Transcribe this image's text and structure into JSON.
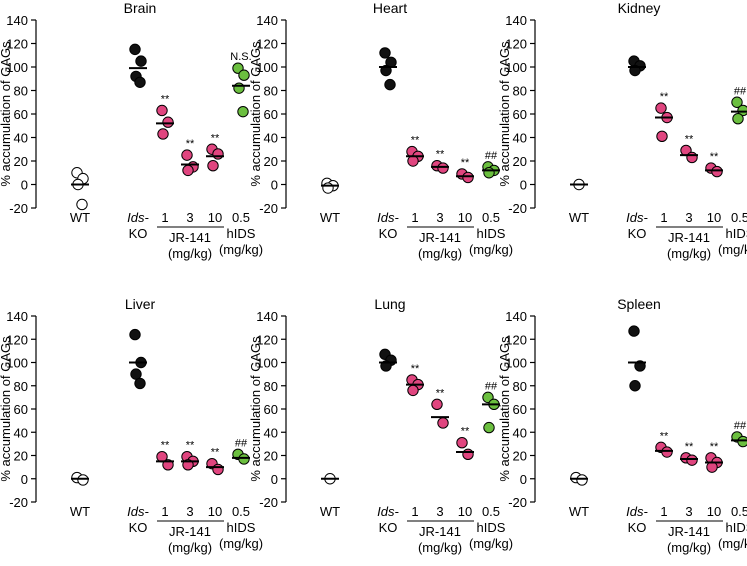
{
  "figure": {
    "ylabel": "% accumulation of GAGs",
    "ylim": [
      -20,
      140
    ],
    "yticks": [
      -20,
      0,
      20,
      40,
      60,
      80,
      100,
      120,
      140
    ],
    "group_labels": {
      "wt": "WT",
      "ko_line1": "Ids-",
      "ko_line2": "KO",
      "dose_1": "1",
      "dose_3": "3",
      "dose_10": "10",
      "dose_hids": "0.5",
      "jr_name": "JR-141",
      "jr_unit": "(mg/kg)",
      "hids_name": "hIDS",
      "hids_unit": "(mg/kg)"
    },
    "colors": {
      "wt": "#ffffff",
      "ko": "#111111",
      "jr141": "#e0457f",
      "hids": "#6bbf3f"
    }
  },
  "chart_data": [
    {
      "type": "scatter",
      "title": "Brain",
      "groups": {
        "wt": {
          "points": [
            10,
            5,
            0,
            -17
          ],
          "mean": 0
        },
        "ko": {
          "points": [
            115,
            105,
            92,
            87
          ],
          "mean": 99
        },
        "jr_1": {
          "points": [
            63,
            53,
            43
          ],
          "mean": 52,
          "annotation": "**"
        },
        "jr_3": {
          "points": [
            25,
            15,
            12
          ],
          "mean": 17,
          "annotation": "**"
        },
        "jr_10": {
          "points": [
            30,
            26,
            16
          ],
          "mean": 24,
          "annotation": "**"
        },
        "hids": {
          "points": [
            99,
            93,
            82,
            62
          ],
          "mean": 84,
          "annotation": "N.S."
        }
      }
    },
    {
      "type": "scatter",
      "title": "Heart",
      "groups": {
        "wt": {
          "points": [
            1,
            -1,
            -3
          ],
          "mean": -1
        },
        "ko": {
          "points": [
            112,
            104,
            97,
            85
          ],
          "mean": 100
        },
        "jr_1": {
          "points": [
            28,
            24,
            20
          ],
          "mean": 24,
          "annotation": "**"
        },
        "jr_3": {
          "points": [
            16,
            14
          ],
          "mean": 15,
          "annotation": "**"
        },
        "jr_10": {
          "points": [
            9,
            6
          ],
          "mean": 7,
          "annotation": "**"
        },
        "hids": {
          "points": [
            15,
            12,
            10
          ],
          "mean": 12,
          "annotation": "##"
        }
      }
    },
    {
      "type": "scatter",
      "title": "Kidney",
      "groups": {
        "wt": {
          "points": [
            0
          ],
          "mean": 0
        },
        "ko": {
          "points": [
            105,
            101,
            97
          ],
          "mean": 100
        },
        "jr_1": {
          "points": [
            65,
            57,
            41
          ],
          "mean": 57,
          "annotation": "**"
        },
        "jr_3": {
          "points": [
            29,
            23
          ],
          "mean": 25,
          "annotation": "**"
        },
        "jr_10": {
          "points": [
            14,
            11
          ],
          "mean": 12,
          "annotation": "**"
        },
        "hids": {
          "points": [
            70,
            63,
            56
          ],
          "mean": 62,
          "annotation": "##"
        }
      }
    },
    {
      "type": "scatter",
      "title": "Liver",
      "groups": {
        "wt": {
          "points": [
            1,
            -1
          ],
          "mean": 0
        },
        "ko": {
          "points": [
            124,
            100,
            90,
            82
          ],
          "mean": 100
        },
        "jr_1": {
          "points": [
            19,
            12
          ],
          "mean": 15,
          "annotation": "**"
        },
        "jr_3": {
          "points": [
            19,
            15,
            12
          ],
          "mean": 15,
          "annotation": "**"
        },
        "jr_10": {
          "points": [
            13,
            8
          ],
          "mean": 10,
          "annotation": "**"
        },
        "hids": {
          "points": [
            21,
            17
          ],
          "mean": 18,
          "annotation": "##"
        }
      }
    },
    {
      "type": "scatter",
      "title": "Lung",
      "groups": {
        "wt": {
          "points": [
            0
          ],
          "mean": 0
        },
        "ko": {
          "points": [
            107,
            102,
            97
          ],
          "mean": 100
        },
        "jr_1": {
          "points": [
            85,
            81,
            76
          ],
          "mean": 81,
          "annotation": "**"
        },
        "jr_3": {
          "points": [
            64,
            48
          ],
          "mean": 53,
          "annotation": "**"
        },
        "jr_10": {
          "points": [
            31,
            21
          ],
          "mean": 23,
          "annotation": "**"
        },
        "hids": {
          "points": [
            70,
            64,
            44
          ],
          "mean": 64,
          "annotation": "##"
        }
      }
    },
    {
      "type": "scatter",
      "title": "Spleen",
      "groups": {
        "wt": {
          "points": [
            1,
            -1
          ],
          "mean": 0
        },
        "ko": {
          "points": [
            127,
            97,
            80
          ],
          "mean": 100
        },
        "jr_1": {
          "points": [
            27,
            23
          ],
          "mean": 24,
          "annotation": "**"
        },
        "jr_3": {
          "points": [
            18,
            16
          ],
          "mean": 17,
          "annotation": "**"
        },
        "jr_10": {
          "points": [
            18,
            14,
            10
          ],
          "mean": 14,
          "annotation": "**"
        },
        "hids": {
          "points": [
            36,
            32
          ],
          "mean": 33,
          "annotation": "##"
        }
      }
    }
  ]
}
